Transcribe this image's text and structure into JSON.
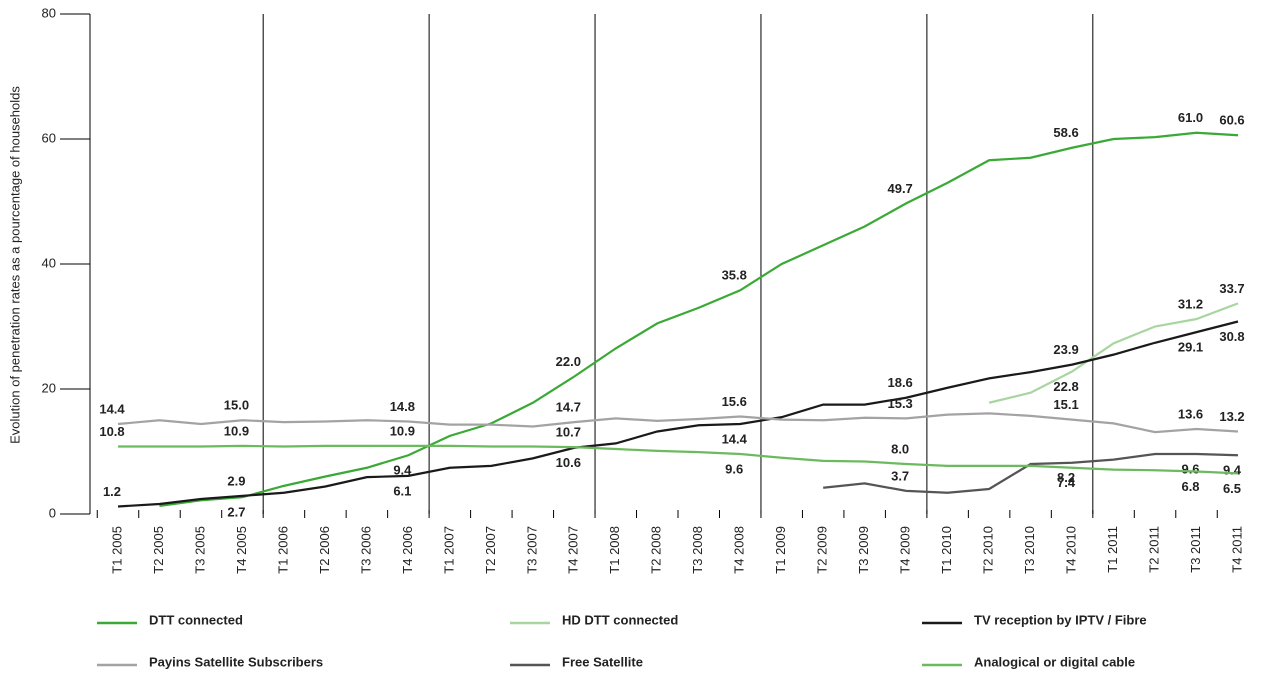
{
  "chart_data": {
    "type": "line",
    "y_axis_label": "Evolution of penetration rates as a pourcentage of households",
    "categories": [
      "T1 2005",
      "T2 2005",
      "T3 2005",
      "T4 2005",
      "T1 2006",
      "T2 2006",
      "T3 2006",
      "T4 2006",
      "T1 2007",
      "T2 2007",
      "T3 2007",
      "T4 2007",
      "T1 2008",
      "T2 2008",
      "T3 2008",
      "T4 2008",
      "T1 2009",
      "T2 2009",
      "T3 2009",
      "T4 2009",
      "T1 2010",
      "T2 2010",
      "T3 2010",
      "T4 2010",
      "T1 2011",
      "T2 2011",
      "T3 2011",
      "T4 2011"
    ],
    "ylim": [
      0,
      80
    ],
    "yticks": [
      0,
      20,
      40,
      60,
      80
    ],
    "series": [
      {
        "name": "DTT connected",
        "color": "#3aa935",
        "values": [
          null,
          1.3,
          2.2,
          2.7,
          4.5,
          6.0,
          7.4,
          9.4,
          12.5,
          14.5,
          17.8,
          22.0,
          26.5,
          30.5,
          33.0,
          35.8,
          40.0,
          43.0,
          46.0,
          49.7,
          53.0,
          56.6,
          57.0,
          58.6,
          60.0,
          60.3,
          61.0,
          60.6
        ],
        "value_labels": [
          null,
          null,
          null,
          "2.7",
          null,
          null,
          null,
          "9.4",
          null,
          null,
          null,
          "22.0",
          null,
          null,
          null,
          "35.8",
          null,
          null,
          null,
          "49.7",
          null,
          null,
          null,
          "58.6",
          null,
          null,
          "61.0",
          "60.6"
        ]
      },
      {
        "name": "HD DTT connected",
        "color": "#a8d5a0",
        "values": [
          null,
          null,
          null,
          null,
          null,
          null,
          null,
          null,
          null,
          null,
          null,
          null,
          null,
          null,
          null,
          null,
          null,
          null,
          null,
          null,
          null,
          17.8,
          19.4,
          22.8,
          27.3,
          30.0,
          31.2,
          33.7
        ],
        "value_labels": [
          null,
          null,
          null,
          null,
          null,
          null,
          null,
          null,
          null,
          null,
          null,
          null,
          null,
          null,
          null,
          null,
          null,
          null,
          null,
          null,
          null,
          null,
          null,
          "22.8",
          null,
          null,
          "31.2",
          "33.7"
        ]
      },
      {
        "name": "TV reception by IPTV / Fibre",
        "color": "#1a1a1a",
        "values": [
          1.2,
          1.6,
          2.4,
          2.9,
          3.4,
          4.4,
          5.9,
          6.1,
          7.4,
          7.7,
          8.9,
          10.6,
          11.3,
          13.2,
          14.2,
          14.4,
          15.5,
          17.5,
          17.5,
          18.6,
          20.2,
          21.7,
          22.7,
          23.9,
          25.5,
          27.4,
          29.1,
          30.8
        ],
        "value_labels": [
          "1.2",
          null,
          null,
          "2.9",
          null,
          null,
          null,
          "6.1",
          null,
          null,
          null,
          "10.6",
          null,
          null,
          null,
          "14.4",
          null,
          null,
          null,
          "18.6",
          null,
          null,
          null,
          "23.9",
          null,
          null,
          "29.1",
          "30.8"
        ]
      },
      {
        "name": "Payins Satellite Subscribers",
        "color": "#a3a3a3",
        "values": [
          14.4,
          15.0,
          14.4,
          15.0,
          14.7,
          14.8,
          15.0,
          14.8,
          14.3,
          14.3,
          14.0,
          14.7,
          15.3,
          14.9,
          15.2,
          15.6,
          15.1,
          15.0,
          15.4,
          15.3,
          15.9,
          16.1,
          15.7,
          15.1,
          14.5,
          13.1,
          13.6,
          13.2
        ],
        "value_labels": [
          "14.4",
          null,
          null,
          "15.0",
          null,
          null,
          null,
          "14.8",
          null,
          null,
          null,
          "14.7",
          null,
          null,
          null,
          "15.6",
          null,
          null,
          null,
          "15.3",
          null,
          null,
          null,
          "15.1",
          null,
          null,
          "13.6",
          "13.2"
        ]
      },
      {
        "name": "Free Satellite",
        "color": "#555555",
        "values": [
          null,
          null,
          null,
          null,
          null,
          null,
          null,
          null,
          null,
          null,
          null,
          null,
          null,
          null,
          null,
          null,
          null,
          4.2,
          4.9,
          3.7,
          3.4,
          4.0,
          8.0,
          8.2,
          8.7,
          9.6,
          9.6,
          9.4
        ],
        "value_labels": [
          null,
          null,
          null,
          null,
          null,
          null,
          null,
          null,
          null,
          null,
          null,
          null,
          null,
          null,
          null,
          null,
          null,
          null,
          null,
          "3.7",
          null,
          null,
          null,
          "8.2",
          null,
          null,
          "9.6",
          "9.4"
        ]
      },
      {
        "name": "Analogical or digital cable",
        "color": "#6cba5e",
        "values": [
          10.8,
          10.8,
          10.8,
          10.9,
          10.8,
          10.9,
          10.9,
          10.9,
          10.9,
          10.8,
          10.8,
          10.7,
          10.4,
          10.1,
          9.9,
          9.6,
          9.0,
          8.5,
          8.4,
          8.0,
          7.7,
          7.7,
          7.7,
          7.4,
          7.1,
          7.0,
          6.8,
          6.5
        ],
        "value_labels": [
          "10.8",
          null,
          null,
          "10.9",
          null,
          null,
          null,
          "10.9",
          null,
          null,
          null,
          "10.7",
          null,
          null,
          null,
          "9.6",
          null,
          null,
          null,
          "8.0",
          null,
          null,
          null,
          "7.4",
          null,
          null,
          "6.8",
          "6.5"
        ]
      }
    ]
  }
}
